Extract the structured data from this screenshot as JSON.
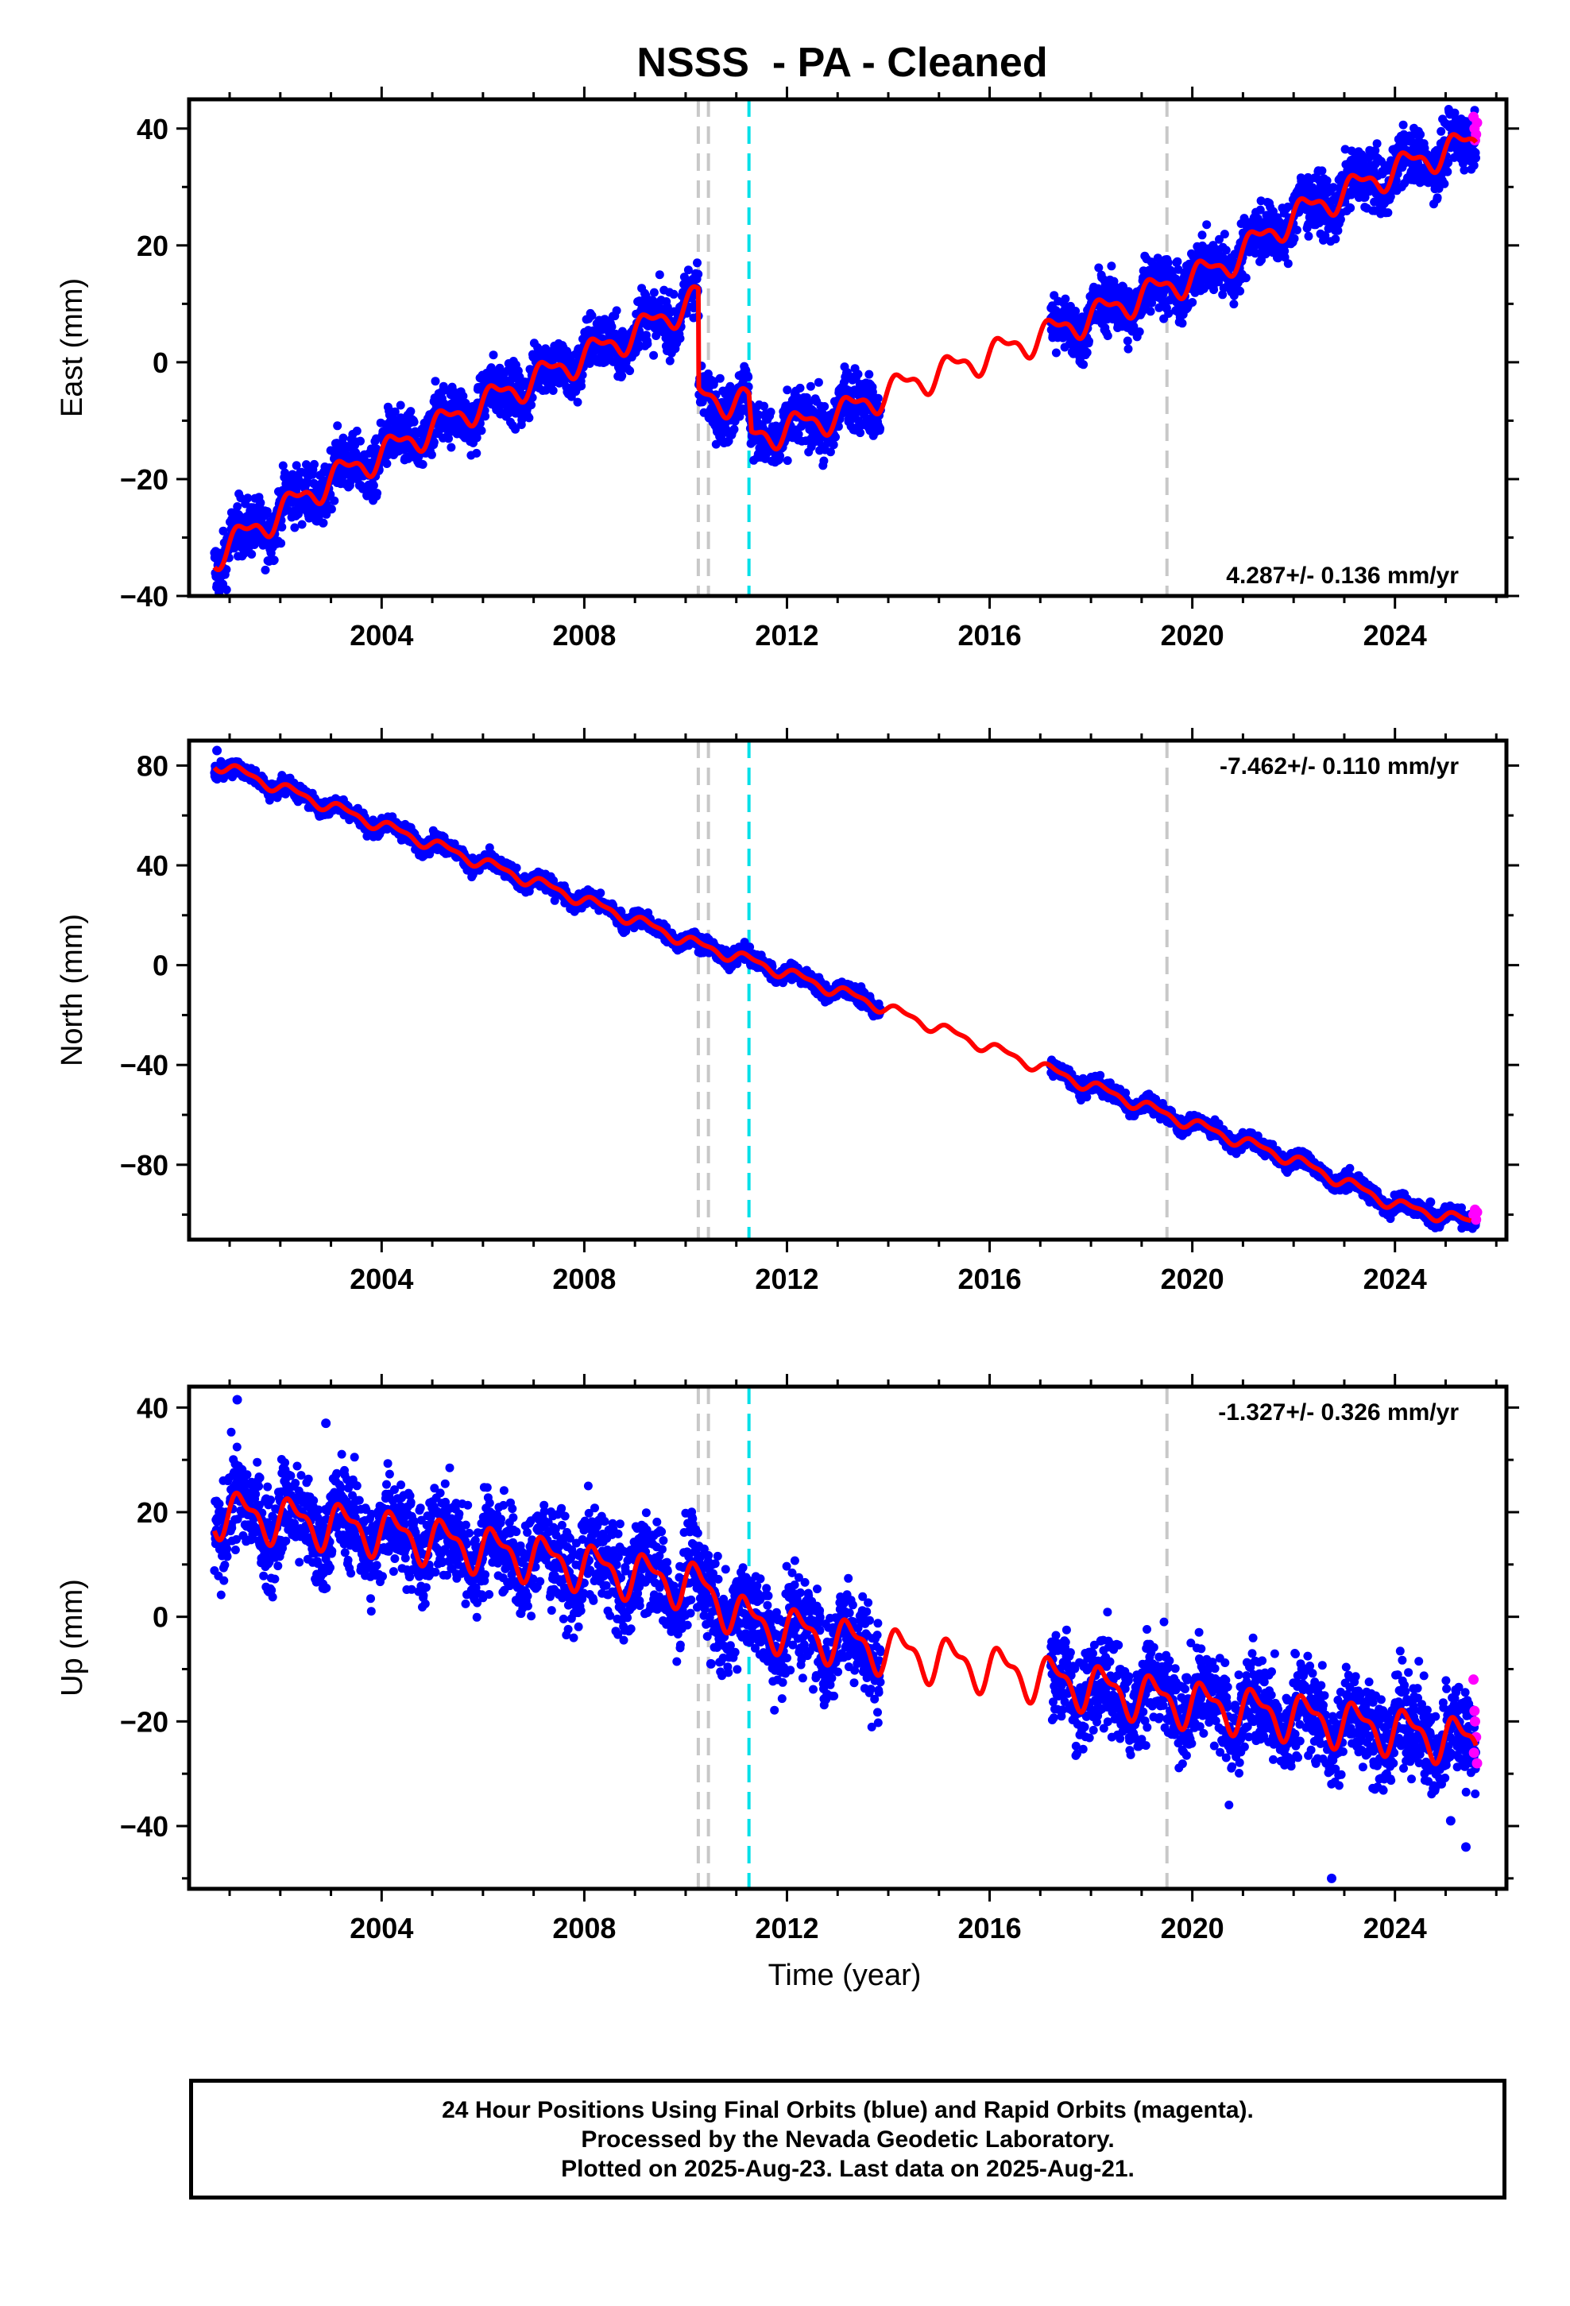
{
  "chart_data": {
    "title": "NSSS  - PA - Cleaned",
    "xlabel": "Time (year)",
    "xlim": [
      2000.2,
      2026.2
    ],
    "xticks": [
      2004,
      2008,
      2012,
      2016,
      2020,
      2024
    ],
    "event_lines": [
      {
        "x": 2010.25,
        "color": "#c8c8c8"
      },
      {
        "x": 2010.45,
        "color": "#c8c8c8"
      },
      {
        "x": 2011.25,
        "color": "#00e0e8"
      },
      {
        "x": 2019.5,
        "color": "#c8c8c8"
      }
    ],
    "colors": {
      "final": "#0000ff",
      "rapid": "#ff00ff",
      "model": "#ff0000"
    },
    "panels": [
      {
        "ylabel": "East (mm)",
        "ylim": [
          -40,
          45
        ],
        "yticks": [
          -40,
          -20,
          0,
          20,
          40
        ],
        "rate_label": "4.287+/- 0.136 mm/yr",
        "rate_position": "bottom-right",
        "model": {
          "knots": [
            [
              2000.7,
              -33
            ],
            [
              2003.0,
              -20
            ],
            [
              2006.0,
              -7
            ],
            [
              2009.0,
              5
            ],
            [
              2010.25,
              11
            ],
            [
              2010.26,
              -6
            ],
            [
              2011.25,
              -7
            ],
            [
              2011.3,
              -13
            ],
            [
              2013.0,
              -9
            ],
            [
              2014.0,
              -5
            ],
            [
              2017.2,
              5
            ],
            [
              2019.5,
              13
            ],
            [
              2020.5,
              16
            ],
            [
              2022.0,
              25
            ],
            [
              2024.0,
              33
            ],
            [
              2025.6,
              38
            ]
          ],
          "seasonal_amp": 2.2,
          "data_ranges": [
            [
              2000.7,
              2013.85
            ],
            [
              2017.2,
              2025.6
            ]
          ],
          "scatter": 2.4,
          "outliers": [
            [
              2000.75,
              -38.5
            ],
            [
              2000.8,
              -37
            ],
            [
              2024.8,
              36
            ]
          ],
          "gap_after_step": [
            2010.3,
            2010.45
          ]
        },
        "rapid": [
          [
            2025.55,
            42
          ],
          [
            2025.57,
            40
          ],
          [
            2025.6,
            39
          ],
          [
            2025.62,
            41
          ],
          [
            2025.58,
            38
          ]
        ]
      },
      {
        "ylabel": "North (mm)",
        "ylim": [
          -110,
          90
        ],
        "yticks": [
          -80,
          -40,
          0,
          40,
          80
        ],
        "rate_label": "-7.462+/- 0.110 mm/yr",
        "rate_position": "top-right",
        "model": {
          "knots": [
            [
              2000.7,
              81
            ],
            [
              2004.0,
              56
            ],
            [
              2008.0,
              26
            ],
            [
              2010.25,
              8
            ],
            [
              2011.25,
              2
            ],
            [
              2013.8,
              -16
            ],
            [
              2016.0,
              -33
            ],
            [
              2019.5,
              -60
            ],
            [
              2022.0,
              -78
            ],
            [
              2024.0,
              -96
            ],
            [
              2025.5,
              -103
            ]
          ],
          "seasonal_amp": 2.0,
          "data_ranges": [
            [
              2000.7,
              2013.85
            ],
            [
              2017.2,
              2025.6
            ]
          ],
          "scatter": 1.6,
          "outliers": [
            [
              2000.75,
              86
            ],
            [
              2024.7,
              -95
            ]
          ],
          "gap_after_step": []
        },
        "rapid": [
          [
            2025.55,
            -100
          ],
          [
            2025.58,
            -98
          ],
          [
            2025.6,
            -102
          ],
          [
            2025.62,
            -99
          ]
        ]
      },
      {
        "ylabel": "Up (mm)",
        "ylim": [
          -52,
          44
        ],
        "yticks": [
          -40,
          -20,
          0,
          20,
          40
        ],
        "rate_label": "-1.327+/- 0.326 mm/yr",
        "rate_position": "top-right",
        "model": {
          "knots": [
            [
              2000.7,
              20
            ],
            [
              2003.5,
              17
            ],
            [
              2006.0,
              13
            ],
            [
              2009.0,
              8
            ],
            [
              2010.25,
              6
            ],
            [
              2011.25,
              -1
            ],
            [
              2013.8,
              -6
            ],
            [
              2017.2,
              -12
            ],
            [
              2019.5,
              -16
            ],
            [
              2022.0,
              -19
            ],
            [
              2025.6,
              -24
            ]
          ],
          "seasonal_amp": 3.8,
          "data_ranges": [
            [
              2000.7,
              2013.85
            ],
            [
              2017.2,
              2025.6
            ]
          ],
          "scatter": 4.5,
          "outliers": [
            [
              2001.15,
              41.5
            ],
            [
              2002.9,
              37
            ],
            [
              2022.75,
              -50
            ],
            [
              2025.4,
              -44
            ],
            [
              2025.1,
              -39
            ],
            [
              2010.5,
              -9
            ]
          ],
          "gap_after_step": []
        },
        "rapid": [
          [
            2025.55,
            -12
          ],
          [
            2025.57,
            -18
          ],
          [
            2025.58,
            -20
          ],
          [
            2025.6,
            -23
          ],
          [
            2025.62,
            -28
          ],
          [
            2025.56,
            -26
          ]
        ]
      }
    ]
  },
  "footer": {
    "line1": "24 Hour Positions Using Final Orbits (blue) and Rapid Orbits (magenta).",
    "line2": "Processed by the Nevada Geodetic Laboratory.",
    "line3": "Plotted on 2025-Aug-23. Last data on 2025-Aug-21."
  }
}
